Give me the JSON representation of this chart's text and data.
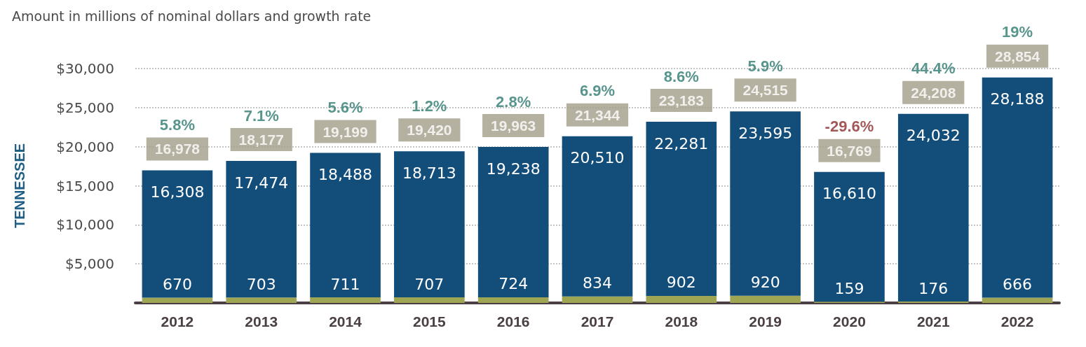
{
  "chart_data": {
    "type": "bar",
    "title": "Amount in millions of nominal dollars and growth rate",
    "ylabel": "TENNESSEE",
    "categories": [
      "2012",
      "2013",
      "2014",
      "2015",
      "2016",
      "2017",
      "2018",
      "2019",
      "2020",
      "2021",
      "2022"
    ],
    "stacked": true,
    "series": [
      {
        "color": "#9ea653",
        "values": [
          670,
          703,
          711,
          707,
          724,
          834,
          902,
          920,
          159,
          176,
          666
        ],
        "value_labels": [
          "670",
          "703",
          "711",
          "707",
          "724",
          "834",
          "902",
          "920",
          "159",
          "176",
          "666"
        ]
      },
      {
        "color": "#134d7a",
        "values": [
          16308,
          17474,
          18488,
          18713,
          19238,
          20510,
          22281,
          23595,
          16610,
          24032,
          28188
        ],
        "value_labels": [
          "16,308",
          "17,474",
          "18,488",
          "18,713",
          "19,238",
          "20,510",
          "22,281",
          "23,595",
          "16,610",
          "24,032",
          "28,188"
        ]
      }
    ],
    "totals": [
      "16,978",
      "18,177",
      "19,199",
      "19,420",
      "19,963",
      "21,344",
      "23,183",
      "24,515",
      "16,769",
      "24,208",
      "28,854"
    ],
    "annotations": [
      {
        "text": "5.8%",
        "x": "2012",
        "y": 16978
      },
      {
        "text": "7.1%",
        "x": "2013",
        "y": 18177
      },
      {
        "text": "5.6%",
        "x": "2014",
        "y": 19199
      },
      {
        "text": "1.2%",
        "x": "2015",
        "y": 19420
      },
      {
        "text": "2.8%",
        "x": "2016",
        "y": 19963
      },
      {
        "text": "6.9%",
        "x": "2017",
        "y": 21344
      },
      {
        "text": "8.6%",
        "x": "2018",
        "y": 23183
      },
      {
        "text": "5.9%",
        "x": "2019",
        "y": 24515
      },
      {
        "text": "-29.6%",
        "x": "2020",
        "y": 16769
      },
      {
        "text": "44.4%",
        "x": "2021",
        "y": 24208
      },
      {
        "text": "19%",
        "x": "2022",
        "y": 28854
      }
    ],
    "ylim": [
      0,
      30000
    ],
    "yticks": [
      {
        "value": 0,
        "label": null
      },
      {
        "value": 5000,
        "label": "$5,000"
      },
      {
        "value": 10000,
        "label": "$10,000"
      },
      {
        "value": 15000,
        "label": "$15,000"
      },
      {
        "value": 20000,
        "label": "$20,000"
      },
      {
        "value": 25000,
        "label": "$25,000"
      },
      {
        "value": 30000,
        "label": "$30,000"
      }
    ],
    "grid": "y"
  }
}
